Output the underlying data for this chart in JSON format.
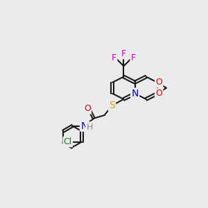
{
  "bg_color": "#ebebeb",
  "bond_color": "#1a1a1a",
  "bond_width": 1.5,
  "atom_colors": {
    "F": "#cc00cc",
    "O": "#dd0000",
    "S": "#ccaa00",
    "N_blue": "#0000dd",
    "Cl": "#008800",
    "H": "#888888",
    "C": "#1a1a1a"
  },
  "font_size": 9,
  "font_size_small": 8
}
